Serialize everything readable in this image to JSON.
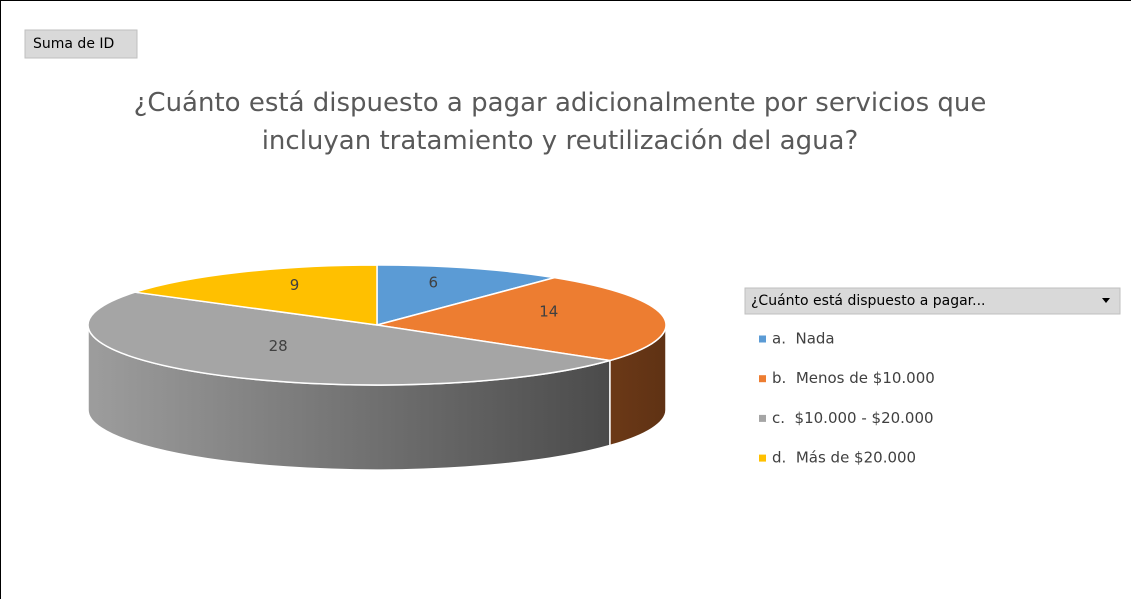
{
  "field_button": "Suma de ID",
  "legend_header": "¿Cuánto está dispuesto a pagar...",
  "chart_data": {
    "type": "pie3d",
    "title": "¿Cuánto está dispuesto a pagar adicionalmente por servicios que incluyan tratamiento y reutilización del agua?",
    "categories": [
      "a.  Nada",
      "b.  Menos de $10.000",
      "c.  $10.000 - $20.000",
      "d.  Más de $20.000"
    ],
    "values": [
      6,
      14,
      28,
      9
    ],
    "colors": [
      "#5b9bd5",
      "#ed7d31",
      "#a5a5a5",
      "#ffc000"
    ],
    "legend": "right"
  }
}
